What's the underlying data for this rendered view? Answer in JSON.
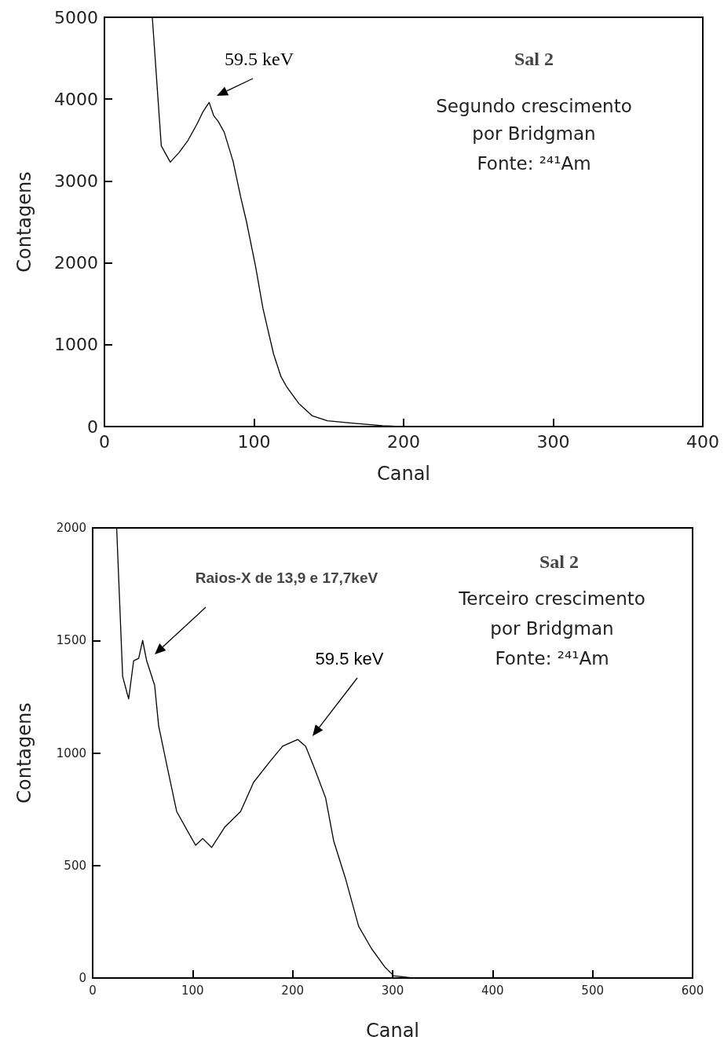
{
  "chart_data": [
    {
      "type": "line",
      "xlabel": "Canal",
      "ylabel": "Contagens",
      "xlim": [
        0,
        400
      ],
      "xticks": [
        0,
        100,
        200,
        300,
        400
      ],
      "ylim": [
        0,
        5000
      ],
      "yticks": [
        0,
        1000,
        2000,
        3000,
        4000,
        5000
      ],
      "marker": "none",
      "series": [
        {
          "color": "#000000",
          "x": [
            32,
            38,
            44,
            50,
            56,
            62,
            66,
            70,
            73,
            76,
            80,
            86,
            91,
            95,
            101,
            106,
            113,
            118,
            122,
            130,
            139,
            149,
            167,
            186,
            200,
            210
          ],
          "values": [
            5000,
            3430,
            3230,
            3350,
            3500,
            3700,
            3850,
            3960,
            3800,
            3730,
            3600,
            3240,
            2810,
            2500,
            1960,
            1440,
            890,
            610,
            480,
            280,
            130,
            70,
            40,
            10,
            0,
            0
          ]
        }
      ],
      "annotations": [
        "59.5 keV",
        "Sal 2",
        "Segundo crescimento",
        "por Bridgman",
        "Fonte: ²⁴¹Am"
      ]
    },
    {
      "type": "line",
      "xlabel": "Canal",
      "ylabel": "Contagens",
      "xlim": [
        0,
        600
      ],
      "xticks": [
        0,
        100,
        200,
        300,
        400,
        500,
        600
      ],
      "ylim": [
        0,
        2000
      ],
      "yticks": [
        0,
        500,
        1000,
        1500,
        2000
      ],
      "marker": "none",
      "series": [
        {
          "color": "#000000",
          "x": [
            24,
            30,
            36,
            41,
            46,
            50,
            54,
            62,
            66,
            74,
            84,
            94,
            103,
            110,
            119,
            132,
            148,
            161,
            177,
            190,
            205,
            213,
            222,
            233,
            241,
            253,
            266,
            279,
            292,
            301,
            320,
            350,
            400
          ],
          "values": [
            2000,
            1340,
            1240,
            1410,
            1420,
            1500,
            1410,
            1300,
            1120,
            950,
            740,
            660,
            590,
            620,
            580,
            670,
            740,
            870,
            960,
            1030,
            1060,
            1030,
            930,
            800,
            610,
            440,
            230,
            130,
            50,
            10,
            0,
            0,
            0
          ]
        }
      ],
      "annotations": [
        "Raios-X de 13,9 e 17,7keV",
        "59.5 keV",
        "Sal 2",
        "Terceiro crescimento",
        "por Bridgman",
        "Fonte: ²⁴¹Am"
      ]
    }
  ]
}
